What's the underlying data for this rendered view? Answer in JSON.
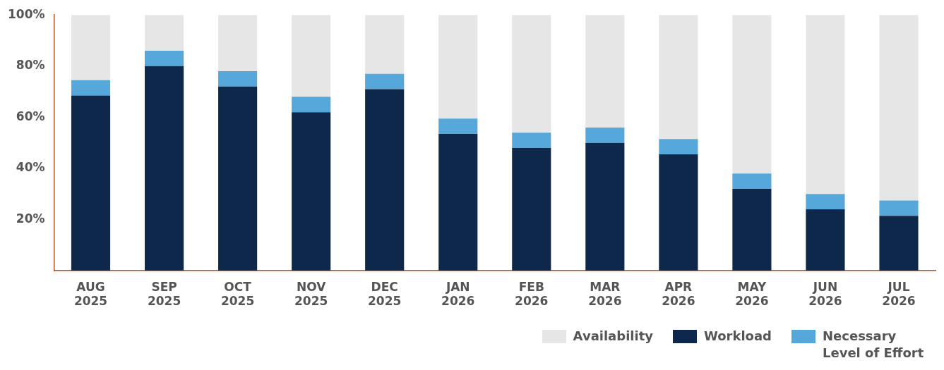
{
  "chart_data": {
    "type": "bar",
    "stacked": true,
    "categories": [
      "AUG 2025",
      "SEP 2025",
      "OCT 2025",
      "NOV 2025",
      "DEC 2025",
      "JAN 2026",
      "FEB 2026",
      "MAR 2026",
      "APR 2026",
      "MAY 2026",
      "JUN 2026",
      "JUL 2026"
    ],
    "series": [
      {
        "name": "Workload",
        "color": "#0e284c",
        "values": [
          68.5,
          80,
          72,
          62,
          71,
          53.5,
          48,
          50,
          45.5,
          32,
          24,
          21.5
        ]
      },
      {
        "name": "Necessary Level of Effort",
        "color": "#55a8d9",
        "values": [
          6,
          6,
          6,
          6,
          6,
          6,
          6,
          6,
          6,
          6,
          6,
          6
        ]
      },
      {
        "name": "Availability",
        "color": "#e6e6e6",
        "values": [
          25.5,
          14,
          22,
          32,
          23,
          40.5,
          46,
          44,
          48.5,
          62,
          70,
          72.5
        ]
      }
    ],
    "ylim": [
      0,
      100
    ],
    "yticks": [
      {
        "value": 20,
        "label": "20%"
      },
      {
        "value": 40,
        "label": "40%"
      },
      {
        "value": 60,
        "label": "60%"
      },
      {
        "value": 80,
        "label": "80%"
      },
      {
        "value": 100,
        "label": "100%"
      }
    ],
    "grid": false,
    "legend": "bottom right"
  }
}
